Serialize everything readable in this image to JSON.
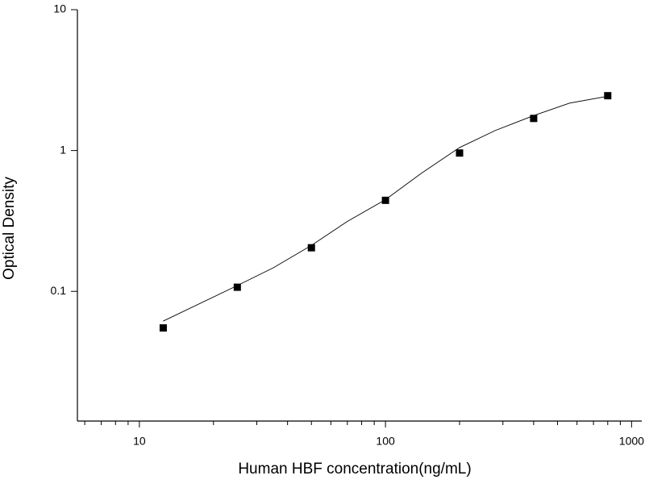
{
  "chart_data": {
    "type": "scatter",
    "x_label": "Human HBF concentration(ng/mL)",
    "y_label": "Optical Density",
    "xscale": "log",
    "yscale": "log",
    "xlim": [
      5.6,
      1100
    ],
    "ylim": [
      0.012,
      10
    ],
    "xticks": [
      10,
      100,
      1000
    ],
    "xminorticks": [
      6,
      7,
      8,
      9,
      20,
      30,
      40,
      50,
      60,
      70,
      80,
      90,
      200,
      300,
      400,
      500,
      600,
      700,
      800,
      900
    ],
    "yticks": [
      0.1,
      1,
      10
    ],
    "series": [
      {
        "kind": "points",
        "color": "#000000",
        "x": [
          12.5,
          25,
          50,
          100,
          200,
          400,
          800
        ],
        "values": [
          0.055,
          0.107,
          0.204,
          0.443,
          0.96,
          1.69,
          2.45
        ]
      },
      {
        "kind": "curve",
        "color": "#000000",
        "x": [
          12.5,
          25,
          35,
          50,
          70,
          100,
          140,
          200,
          280,
          400,
          560,
          800
        ],
        "values": [
          0.0615,
          0.11,
          0.147,
          0.212,
          0.314,
          0.448,
          0.69,
          1.05,
          1.39,
          1.77,
          2.17,
          2.43
        ]
      }
    ]
  }
}
